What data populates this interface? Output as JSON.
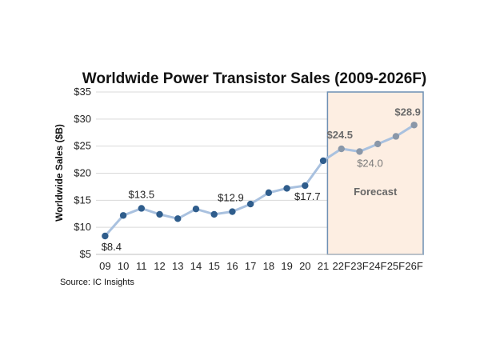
{
  "chart_data": {
    "type": "line",
    "title": "Worldwide Power Transistor Sales (2009-2026F)",
    "ylabel": "Worldwide Sales ($B)",
    "xlabel": "",
    "source": "Source: IC Insights",
    "ylim": [
      5,
      35
    ],
    "y_ticks": [
      "$5",
      "$10",
      "$15",
      "$20",
      "$25",
      "$30",
      "$35"
    ],
    "y_tick_values": [
      5,
      10,
      15,
      20,
      25,
      30,
      35
    ],
    "categories": [
      "09",
      "10",
      "11",
      "12",
      "13",
      "14",
      "15",
      "16",
      "17",
      "18",
      "19",
      "20",
      "21",
      "22F",
      "23F",
      "24F",
      "25F",
      "26F"
    ],
    "values": [
      8.4,
      12.2,
      13.5,
      12.4,
      11.6,
      13.4,
      12.4,
      12.9,
      14.3,
      16.4,
      17.2,
      17.7,
      22.3,
      24.5,
      24.0,
      25.4,
      26.8,
      28.9
    ],
    "forecast_start_index": 13,
    "forecast_label": "Forecast",
    "grid": true,
    "colors": {
      "actual_marker": "#2f5d8c",
      "forecast_marker": "#8a97a8",
      "line": "#a9c1df",
      "forecast_fill": "#fdeee2",
      "forecast_border": "#6d8fb3",
      "grid": "#d9d9d9"
    },
    "data_labels": [
      {
        "index": 0,
        "text": "$8.4"
      },
      {
        "index": 2,
        "text": "$13.5"
      },
      {
        "index": 7,
        "text": "$12.9"
      },
      {
        "index": 11,
        "text": "$17.7"
      },
      {
        "index": 13,
        "text": "$24.5"
      },
      {
        "index": 14,
        "text": "$24.0"
      },
      {
        "index": 17,
        "text": "$28.9"
      }
    ]
  }
}
